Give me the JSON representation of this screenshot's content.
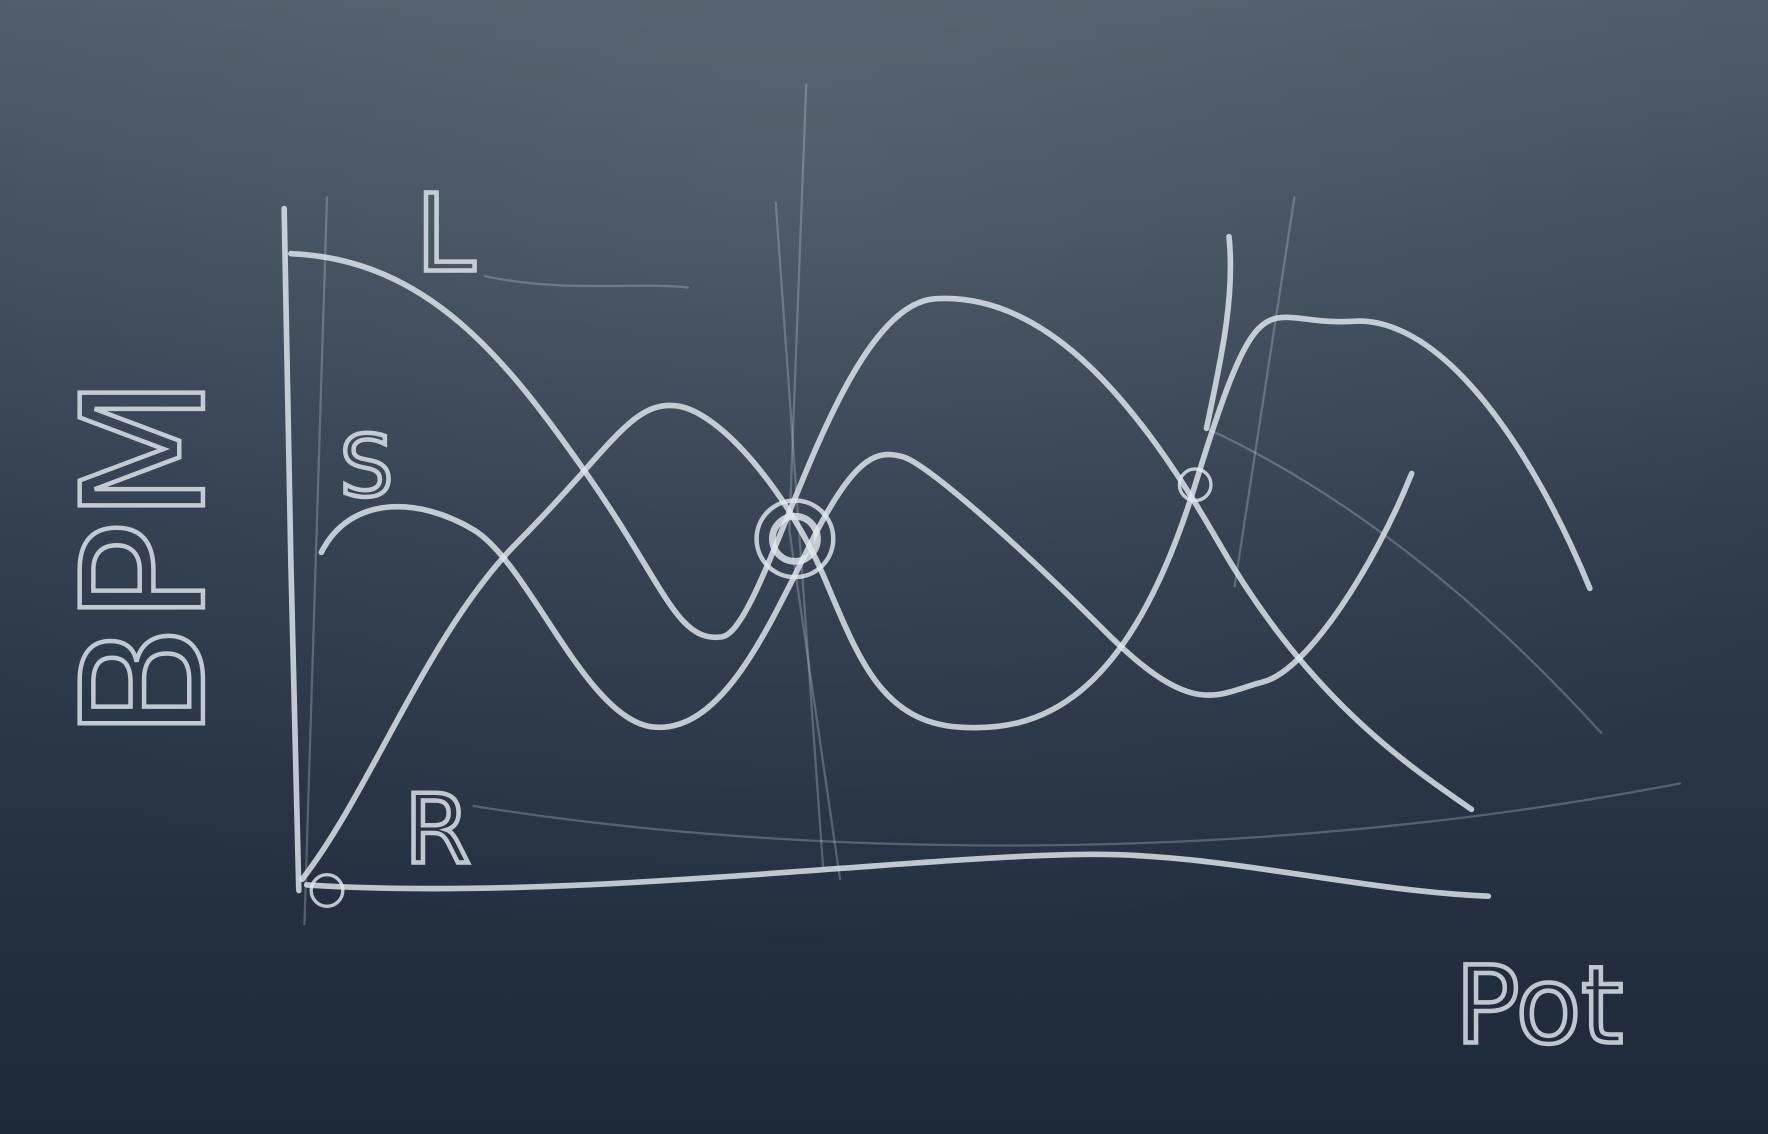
{
  "labels": {
    "y_axis": "BPM",
    "x_axis": "Pot",
    "curves": [
      "L",
      "S",
      "R"
    ]
  }
}
